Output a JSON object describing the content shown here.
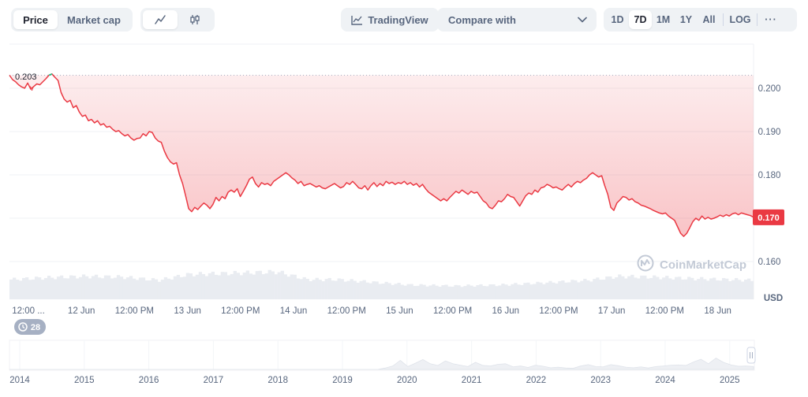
{
  "toolbar": {
    "price_label": "Price",
    "market_cap_label": "Market cap",
    "tradingview_label": "TradingView",
    "compare_label": "Compare with",
    "range_1d": "1D",
    "range_7d": "7D",
    "range_1m": "1M",
    "range_1y": "1Y",
    "range_all": "All",
    "log_label": "LOG",
    "more_label": "···"
  },
  "chart_data": [
    {
      "type": "area",
      "series": [
        {
          "values": [
            0.203,
            0.202,
            0.2015,
            0.2008,
            0.2003,
            0.2,
            0.2012,
            0.1998,
            0.2004,
            0.201,
            0.2008,
            0.2015,
            0.2022,
            0.203,
            0.2033,
            0.2025,
            0.2018,
            0.199,
            0.1975,
            0.1968,
            0.1972,
            0.1955,
            0.196,
            0.1945,
            0.1935,
            0.1938,
            0.1925,
            0.1928,
            0.192,
            0.1925,
            0.1915,
            0.1918,
            0.191,
            0.1912,
            0.1905,
            0.19,
            0.1902,
            0.1895,
            0.189,
            0.1893,
            0.1885,
            0.188,
            0.1884,
            0.1885,
            0.1895,
            0.189,
            0.19,
            0.1898,
            0.1885,
            0.1878,
            0.1875,
            0.1855,
            0.184,
            0.183,
            0.1825,
            0.1828,
            0.18,
            0.178,
            0.1752,
            0.1722,
            0.1715,
            0.1725,
            0.172,
            0.1728,
            0.1735,
            0.173,
            0.1722,
            0.1732,
            0.1748,
            0.174,
            0.175,
            0.1745,
            0.176,
            0.1765,
            0.176,
            0.1768,
            0.175,
            0.1762,
            0.1775,
            0.179,
            0.1795,
            0.178,
            0.1772,
            0.1782,
            0.1778,
            0.178,
            0.1775,
            0.1785,
            0.179,
            0.1795,
            0.18,
            0.1805,
            0.18,
            0.1793,
            0.1788,
            0.178,
            0.1785,
            0.1775,
            0.1778,
            0.178,
            0.1776,
            0.1772,
            0.1775,
            0.177,
            0.1768,
            0.1772,
            0.1776,
            0.178,
            0.1775,
            0.177,
            0.1773,
            0.1782,
            0.1778,
            0.1785,
            0.1778,
            0.177,
            0.1768,
            0.1775,
            0.1765,
            0.1775,
            0.1782,
            0.1773,
            0.178,
            0.1775,
            0.1785,
            0.178,
            0.1783,
            0.1778,
            0.1782,
            0.178,
            0.1785,
            0.1778,
            0.1782,
            0.1776,
            0.178,
            0.1772,
            0.1778,
            0.1768,
            0.176,
            0.1755,
            0.175,
            0.1745,
            0.174,
            0.1745,
            0.174,
            0.1748,
            0.1755,
            0.1762,
            0.1758,
            0.1765,
            0.176,
            0.1755,
            0.1762,
            0.1758,
            0.176,
            0.175,
            0.174,
            0.1735,
            0.1725,
            0.1722,
            0.173,
            0.174,
            0.1738,
            0.1745,
            0.1755,
            0.175,
            0.1748,
            0.1738,
            0.1728,
            0.174,
            0.1752,
            0.1758,
            0.1755,
            0.1765,
            0.176,
            0.177,
            0.1772,
            0.1778,
            0.1775,
            0.177,
            0.1772,
            0.1768,
            0.1765,
            0.1772,
            0.1778,
            0.1772,
            0.178,
            0.1785,
            0.1782,
            0.1788,
            0.1792,
            0.18,
            0.1805,
            0.18,
            0.1795,
            0.1798,
            0.1775,
            0.1755,
            0.1725,
            0.1718,
            0.1735,
            0.1742,
            0.175,
            0.1748,
            0.1742,
            0.1745,
            0.1738,
            0.1735,
            0.173,
            0.1728,
            0.1725,
            0.1722,
            0.1718,
            0.1715,
            0.1712,
            0.171,
            0.1712,
            0.1705,
            0.17,
            0.1695,
            0.168,
            0.1665,
            0.1658,
            0.1665,
            0.1678,
            0.1692,
            0.17,
            0.1695,
            0.1705,
            0.1698,
            0.1702,
            0.1698,
            0.17,
            0.1703,
            0.1707,
            0.1704,
            0.1708,
            0.1705,
            0.171,
            0.1712,
            0.1708,
            0.1712,
            0.171,
            0.1708,
            0.1706,
            0.1702
          ]
        }
      ],
      "x_tick_labels": [
        "12:00 ...",
        "12 Jun",
        "12:00 PM",
        "13 Jun",
        "12:00 PM",
        "14 Jun",
        "12:00 PM",
        "15 Jun",
        "12:00 PM",
        "16 Jun",
        "12:00 PM",
        "17 Jun",
        "12:00 PM",
        "18 Jun"
      ],
      "y_tick_labels": [
        "0.200",
        "0.190",
        "0.180",
        "0.170",
        "0.160"
      ],
      "ylim": [
        0.1545,
        0.2045
      ],
      "y_unit": "USD",
      "reference_value_label": "0.203",
      "current_value_label": "0.170",
      "open_value": 0.203,
      "current_value": 0.1702,
      "line_color": "#ea3943",
      "up_color": "#16c784",
      "watermark": "CoinMarketCap",
      "events_badge": "28",
      "grid": true
    },
    {
      "type": "area",
      "series": [
        {
          "values": [
            0,
            0,
            0,
            0,
            0,
            0,
            0,
            0,
            0,
            0,
            0,
            0,
            0,
            0,
            0,
            0,
            0,
            0,
            0,
            0,
            0,
            0,
            0,
            0,
            0,
            0,
            0,
            0,
            0,
            0,
            0,
            0,
            0,
            0,
            0,
            0,
            0,
            0,
            0,
            0,
            0,
            0,
            0,
            0,
            0,
            0,
            0,
            0,
            0,
            0,
            0.05,
            0.12,
            0.32,
            0.1,
            0.22,
            0.35,
            0.2,
            0.14,
            0.3,
            0.2,
            0.15,
            0.1,
            0.25,
            0.14,
            0.12,
            0.18,
            0.2,
            0.09,
            0.12,
            0.07,
            0.15,
            0.11,
            0.06,
            0.08,
            0.05,
            0.04,
            0.12,
            0.17,
            0.1,
            0.09,
            0.17,
            0.13,
            0.08,
            0.06,
            0.09,
            0.05,
            0.1,
            0.12,
            0.15,
            0.16,
            0.14,
            0.26,
            0.36,
            0.2,
            0.4,
            0.25,
            0.16,
            0.11,
            0.12,
            0.1
          ]
        }
      ],
      "x_tick_labels": [
        "2014",
        "2015",
        "2016",
        "2017",
        "2018",
        "2019",
        "2020",
        "2021",
        "2022",
        "2023",
        "2024",
        "2025"
      ]
    }
  ]
}
